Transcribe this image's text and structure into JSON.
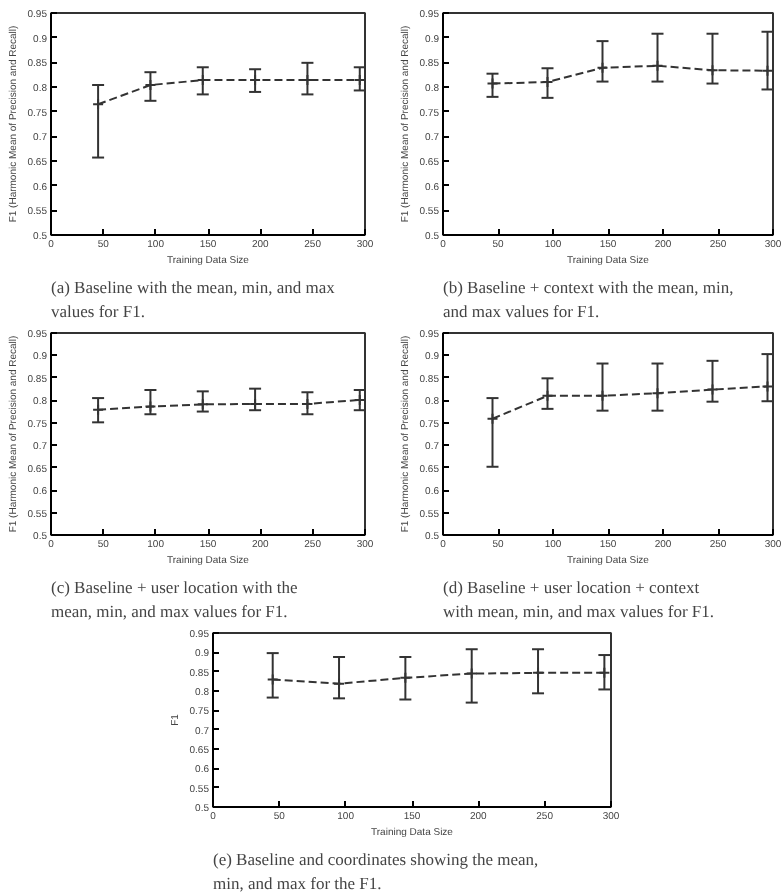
{
  "chart_data": [
    {
      "type": "line",
      "xlabel": "Training Data Size",
      "ylabel": "F1 (Harmonic Mean of Precision and Recall)",
      "x": [
        45,
        95,
        145,
        195,
        245,
        295
      ],
      "xlim": [
        0,
        300
      ],
      "xticks": [
        0,
        50,
        100,
        150,
        200,
        250,
        300
      ],
      "ylim": [
        0.5,
        0.95
      ],
      "yticks": [
        0.5,
        0.55,
        0.6,
        0.65,
        0.7,
        0.75,
        0.8,
        0.85,
        0.9,
        0.95
      ],
      "series": [
        {
          "color": "#333333",
          "values": [
            0.765,
            0.804,
            0.814,
            0.814,
            0.814,
            0.814
          ],
          "errors": [
            [
              0.657,
              0.804
            ],
            [
              0.772,
              0.83
            ],
            [
              0.785,
              0.84
            ],
            [
              0.79,
              0.836
            ],
            [
              0.785,
              0.849
            ],
            [
              0.793,
              0.84
            ]
          ]
        }
      ],
      "marker": "cross",
      "line_style": "dashed",
      "grid": false,
      "annotations": [
        "(a) Baseline with the mean, min, and max values for F1."
      ]
    },
    {
      "type": "line",
      "xlabel": "Training Data Size",
      "ylabel": "F1 (Harmonic Mean of Precision and Recall)",
      "x": [
        45,
        95,
        145,
        195,
        245,
        295
      ],
      "xlim": [
        0,
        300
      ],
      "xticks": [
        0,
        50,
        100,
        150,
        200,
        250,
        300
      ],
      "ylim": [
        0.5,
        0.95
      ],
      "yticks": [
        0.5,
        0.55,
        0.6,
        0.65,
        0.7,
        0.75,
        0.8,
        0.85,
        0.9,
        0.95
      ],
      "series": [
        {
          "color": "#333333",
          "values": [
            0.807,
            0.81,
            0.839,
            0.843,
            0.834,
            0.833
          ],
          "errors": [
            [
              0.78,
              0.827
            ],
            [
              0.778,
              0.838
            ],
            [
              0.811,
              0.893
            ],
            [
              0.811,
              0.908
            ],
            [
              0.807,
              0.908
            ],
            [
              0.795,
              0.912
            ]
          ]
        }
      ],
      "marker": "cross",
      "line_style": "dashed",
      "grid": false,
      "annotations": [
        "(b) Baseline + context with the mean, min, and max values for F1."
      ]
    },
    {
      "type": "line",
      "xlabel": "Training Data Size",
      "ylabel": "F1 (Harmonic Mean of Precision and Recall)",
      "x": [
        45,
        95,
        145,
        195,
        245,
        295
      ],
      "xlim": [
        0,
        300
      ],
      "xticks": [
        0,
        50,
        100,
        150,
        200,
        250,
        300
      ],
      "ylim": [
        0.5,
        0.95
      ],
      "yticks": [
        0.5,
        0.55,
        0.6,
        0.65,
        0.7,
        0.75,
        0.8,
        0.85,
        0.9,
        0.95
      ],
      "series": [
        {
          "color": "#333333",
          "values": [
            0.779,
            0.786,
            0.791,
            0.792,
            0.792,
            0.801
          ],
          "errors": [
            [
              0.751,
              0.805
            ],
            [
              0.769,
              0.823
            ],
            [
              0.775,
              0.82
            ],
            [
              0.778,
              0.826
            ],
            [
              0.769,
              0.818
            ],
            [
              0.778,
              0.823
            ]
          ]
        }
      ],
      "marker": "cross",
      "line_style": "dashed",
      "grid": false,
      "annotations": [
        "(c) Baseline + user location with the mean, min, and max values for F1."
      ]
    },
    {
      "type": "line",
      "xlabel": "Training Data Size",
      "ylabel": "F1 (Harmonic Mean of Precision and Recall)",
      "x": [
        45,
        95,
        145,
        195,
        245,
        295
      ],
      "xlim": [
        0,
        300
      ],
      "xticks": [
        0,
        50,
        100,
        150,
        200,
        250,
        300
      ],
      "ylim": [
        0.5,
        0.95
      ],
      "yticks": [
        0.5,
        0.55,
        0.6,
        0.65,
        0.7,
        0.75,
        0.8,
        0.85,
        0.9,
        0.95
      ],
      "series": [
        {
          "color": "#333333",
          "values": [
            0.759,
            0.81,
            0.81,
            0.816,
            0.824,
            0.831
          ],
          "errors": [
            [
              0.652,
              0.805
            ],
            [
              0.781,
              0.849
            ],
            [
              0.777,
              0.882
            ],
            [
              0.777,
              0.882
            ],
            [
              0.797,
              0.888
            ],
            [
              0.798,
              0.903
            ]
          ]
        }
      ],
      "marker": "cross",
      "line_style": "dashed",
      "grid": false,
      "annotations": [
        "(d) Baseline + user location + context with mean, min, and max values for F1."
      ]
    },
    {
      "type": "line",
      "xlabel": "Training Data Size",
      "ylabel": "F1",
      "x": [
        45,
        95,
        145,
        195,
        245,
        295
      ],
      "xlim": [
        0,
        300
      ],
      "xticks": [
        0,
        50,
        100,
        150,
        200,
        250,
        300
      ],
      "ylim": [
        0.5,
        0.95
      ],
      "yticks": [
        0.5,
        0.55,
        0.6,
        0.65,
        0.7,
        0.75,
        0.8,
        0.85,
        0.9,
        0.95
      ],
      "series": [
        {
          "color": "#333333",
          "values": [
            0.83,
            0.819,
            0.834,
            0.845,
            0.847,
            0.847
          ],
          "errors": [
            [
              0.783,
              0.898
            ],
            [
              0.781,
              0.888
            ],
            [
              0.778,
              0.888
            ],
            [
              0.77,
              0.908
            ],
            [
              0.794,
              0.908
            ],
            [
              0.804,
              0.893
            ]
          ]
        }
      ],
      "marker": "cross",
      "line_style": "dashed",
      "grid": false,
      "annotations": [
        "(e) Baseline and coordinates showing the mean, min, and max for the F1."
      ]
    }
  ]
}
